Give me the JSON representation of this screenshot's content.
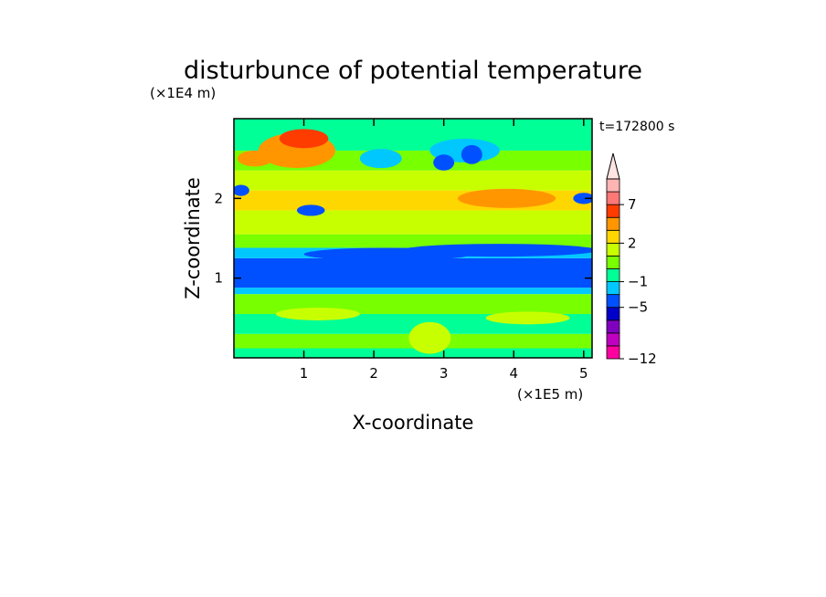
{
  "chart_data": {
    "type": "heatmap",
    "title": "disturbunce of potential temperature",
    "time_label": "t=172800 s",
    "xlabel": "X-coordinate",
    "ylabel": "Z-coordinate",
    "x_unit": "(×1E5 m)",
    "y_unit": "(×1E4 m)",
    "xlim": [
      0,
      5.12
    ],
    "ylim": [
      0,
      3.0
    ],
    "x_ticks": [
      1,
      2,
      3,
      4,
      5
    ],
    "x_tick_labels": [
      "1",
      "2",
      "3",
      "4",
      "5"
    ],
    "y_ticks": [
      1,
      2
    ],
    "y_tick_labels": [
      "1",
      "2"
    ],
    "colorbar": {
      "levels": [
        -12,
        -11,
        -9,
        -7,
        -5,
        -3,
        -1,
        0,
        1,
        2,
        3,
        5,
        7,
        9
      ],
      "colors": [
        "#ff00a0",
        "#c000c0",
        "#8000c0",
        "#0000c8",
        "#0050ff",
        "#00c8ff",
        "#00ff96",
        "#78ff00",
        "#c8ff00",
        "#ffd700",
        "#ff9600",
        "#ff3c00",
        "#ff7878",
        "#ffb4b4"
      ],
      "tick_labels": [
        {
          "label": "7",
          "level": 7
        },
        {
          "label": "2",
          "level": 2
        },
        {
          "label": "−1",
          "level": -1
        },
        {
          "label": "−5",
          "level": -5
        },
        {
          "label": "−12",
          "level": -12
        }
      ],
      "extend_max": true
    },
    "bands": [
      {
        "z_bottom": 0.0,
        "z_top": 0.12,
        "value": -0.5
      },
      {
        "z_bottom": 0.12,
        "z_top": 0.3,
        "value": 0.5
      },
      {
        "z_bottom": 0.3,
        "z_top": 0.55,
        "value": -0.5
      },
      {
        "z_bottom": 0.55,
        "z_top": 0.8,
        "value": 0.5
      },
      {
        "z_bottom": 0.8,
        "z_top": 0.88,
        "value": -1.5
      },
      {
        "z_bottom": 0.88,
        "z_top": 1.25,
        "value": -4.0
      },
      {
        "z_bottom": 1.25,
        "z_top": 1.38,
        "value": -1.5
      },
      {
        "z_bottom": 1.38,
        "z_top": 1.55,
        "value": 0.5
      },
      {
        "z_bottom": 1.55,
        "z_top": 1.85,
        "value": 1.5
      },
      {
        "z_bottom": 1.85,
        "z_top": 2.1,
        "value": 2.5
      },
      {
        "z_bottom": 2.1,
        "z_top": 2.35,
        "value": 1.5
      },
      {
        "z_bottom": 2.35,
        "z_top": 2.6,
        "value": 0.5
      },
      {
        "z_bottom": 2.6,
        "z_top": 3.0,
        "value": -0.5
      }
    ],
    "features": [
      {
        "shape": "ellipse",
        "x": 0.9,
        "z": 2.6,
        "rx": 0.55,
        "rz": 0.22,
        "value": 4.0
      },
      {
        "shape": "ellipse",
        "x": 1.0,
        "z": 2.75,
        "rx": 0.35,
        "rz": 0.12,
        "value": 6.0
      },
      {
        "shape": "ellipse",
        "x": 3.9,
        "z": 2.0,
        "rx": 0.7,
        "rz": 0.12,
        "value": 3.5
      },
      {
        "shape": "ellipse",
        "x": 3.3,
        "z": 2.6,
        "rx": 0.5,
        "rz": 0.15,
        "value": -2.5
      },
      {
        "shape": "ellipse",
        "x": 2.1,
        "z": 2.5,
        "rx": 0.3,
        "rz": 0.12,
        "value": -2.5
      },
      {
        "shape": "ellipse",
        "x": 3.0,
        "z": 2.45,
        "rx": 0.15,
        "rz": 0.1,
        "value": -4.0
      },
      {
        "shape": "ellipse",
        "x": 3.4,
        "z": 2.55,
        "rx": 0.15,
        "rz": 0.12,
        "value": -4.0
      },
      {
        "shape": "ellipse",
        "x": 0.1,
        "z": 2.1,
        "rx": 0.12,
        "rz": 0.07,
        "value": -4.0
      },
      {
        "shape": "ellipse",
        "x": 5.0,
        "z": 2.0,
        "rx": 0.15,
        "rz": 0.07,
        "value": -4.0
      },
      {
        "shape": "ellipse",
        "x": 1.1,
        "z": 1.85,
        "rx": 0.2,
        "rz": 0.07,
        "value": -4.0
      },
      {
        "shape": "ellipse",
        "x": 2.2,
        "z": 1.3,
        "rx": 1.2,
        "rz": 0.08,
        "value": -4.0
      },
      {
        "shape": "ellipse",
        "x": 3.8,
        "z": 1.35,
        "rx": 1.4,
        "rz": 0.08,
        "value": -4.0
      },
      {
        "shape": "ellipse",
        "x": 1.2,
        "z": 0.55,
        "rx": 0.6,
        "rz": 0.08,
        "value": 1.5
      },
      {
        "shape": "ellipse",
        "x": 4.2,
        "z": 0.5,
        "rx": 0.6,
        "rz": 0.08,
        "value": 1.5
      },
      {
        "shape": "ellipse",
        "x": 2.8,
        "z": 0.25,
        "rx": 0.3,
        "rz": 0.2,
        "value": 1.5
      },
      {
        "shape": "ellipse",
        "x": 0.3,
        "z": 2.5,
        "rx": 0.25,
        "rz": 0.1,
        "value": 3.5
      }
    ]
  }
}
